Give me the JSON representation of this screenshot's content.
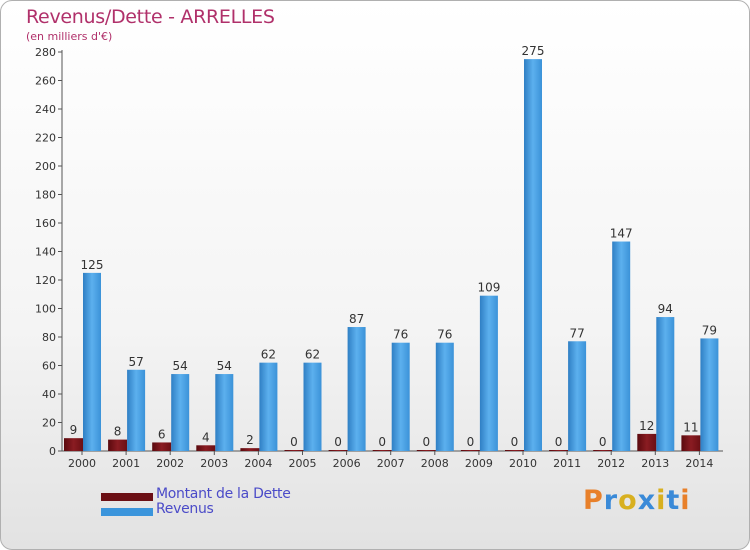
{
  "chart_data": {
    "type": "bar",
    "title": "Revenus/Dette - ARRELLES",
    "subtitle": "(en milliers d'€)",
    "categories": [
      "2000",
      "2001",
      "2002",
      "2003",
      "2004",
      "2005",
      "2006",
      "2007",
      "2008",
      "2009",
      "2010",
      "2011",
      "2012",
      "2013",
      "2014"
    ],
    "series": [
      {
        "name": "Montant de la Dette",
        "color": "#6b0f14",
        "values": [
          9,
          8,
          6,
          4,
          2,
          0,
          0,
          0,
          0,
          0,
          0,
          0,
          0,
          12,
          11
        ]
      },
      {
        "name": "Revenus",
        "color": "#3b95dc",
        "values": [
          125,
          57,
          54,
          54,
          62,
          62,
          87,
          76,
          76,
          109,
          275,
          77,
          147,
          94,
          79
        ]
      }
    ],
    "ylim": [
      0,
      280
    ],
    "yticks": [
      0,
      20,
      40,
      60,
      80,
      100,
      120,
      140,
      160,
      180,
      200,
      220,
      240,
      260,
      280
    ],
    "grid": false,
    "legend": "bottom-left"
  },
  "logo": {
    "text": "Proxiti",
    "colors": [
      "#e8802a",
      "#3a8ad8",
      "#d8b020",
      "#3a8ad8",
      "#d8b020",
      "#3a8ad8",
      "#e8802a"
    ]
  }
}
